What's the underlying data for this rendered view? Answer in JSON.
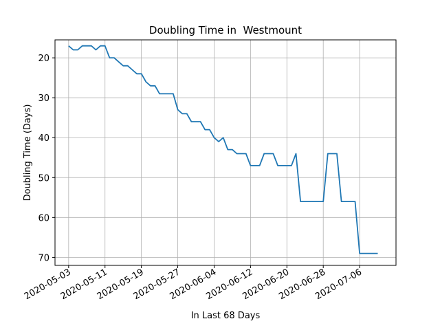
{
  "chart_data": {
    "type": "line",
    "title": "Doubling Time in  Westmount",
    "xlabel": "In Last 68 Days",
    "ylabel": "Doubling Time (Days)",
    "y_inverted": true,
    "ylim": [
      15.5,
      72
    ],
    "y_ticks": [
      20,
      30,
      40,
      50,
      60,
      70
    ],
    "xlim": [
      "2020-04-30",
      "2020-07-14"
    ],
    "x_ticks": [
      "2020-05-03",
      "2020-05-11",
      "2020-05-19",
      "2020-05-27",
      "2020-06-04",
      "2020-06-12",
      "2020-06-20",
      "2020-06-28",
      "2020-07-06"
    ],
    "grid": true,
    "color": "#1f77b4",
    "x": [
      "2020-05-03",
      "2020-05-04",
      "2020-05-05",
      "2020-05-06",
      "2020-05-07",
      "2020-05-08",
      "2020-05-09",
      "2020-05-10",
      "2020-05-11",
      "2020-05-12",
      "2020-05-13",
      "2020-05-14",
      "2020-05-15",
      "2020-05-16",
      "2020-05-17",
      "2020-05-18",
      "2020-05-19",
      "2020-05-20",
      "2020-05-21",
      "2020-05-22",
      "2020-05-23",
      "2020-05-24",
      "2020-05-25",
      "2020-05-26",
      "2020-05-27",
      "2020-05-28",
      "2020-05-29",
      "2020-05-30",
      "2020-05-31",
      "2020-06-01",
      "2020-06-02",
      "2020-06-03",
      "2020-06-04",
      "2020-06-05",
      "2020-06-06",
      "2020-06-07",
      "2020-06-08",
      "2020-06-09",
      "2020-06-10",
      "2020-06-11",
      "2020-06-12",
      "2020-06-13",
      "2020-06-14",
      "2020-06-15",
      "2020-06-16",
      "2020-06-17",
      "2020-06-18",
      "2020-06-19",
      "2020-06-20",
      "2020-06-21",
      "2020-06-22",
      "2020-06-23",
      "2020-06-24",
      "2020-06-25",
      "2020-06-26",
      "2020-06-27",
      "2020-06-28",
      "2020-06-29",
      "2020-06-30",
      "2020-07-01",
      "2020-07-02",
      "2020-07-03",
      "2020-07-04",
      "2020-07-05",
      "2020-07-06",
      "2020-07-07",
      "2020-07-08",
      "2020-07-09",
      "2020-07-10"
    ],
    "y": [
      17,
      18,
      18,
      17,
      17,
      17,
      18,
      17,
      17,
      20,
      20,
      21,
      22,
      22,
      23,
      24,
      24,
      26,
      27,
      27,
      29,
      29,
      29,
      29,
      33,
      34,
      34,
      36,
      36,
      36,
      38,
      38,
      40,
      41,
      40,
      43,
      43,
      44,
      44,
      44,
      47,
      47,
      47,
      44,
      44,
      44,
      47,
      47,
      47,
      47,
      44,
      56,
      56,
      56,
      56,
      56,
      56,
      44,
      44,
      44,
      56,
      56,
      56,
      56,
      69,
      69,
      69,
      69,
      69
    ]
  }
}
